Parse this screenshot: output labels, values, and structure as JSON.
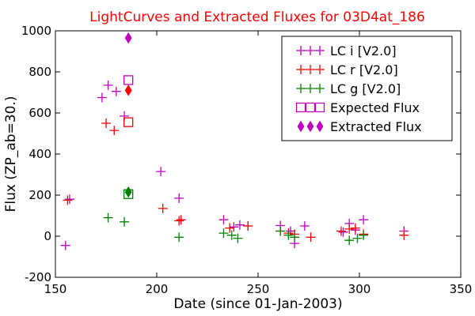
{
  "chart_data": {
    "type": "scatter",
    "title": "LightCurves and Extracted Fluxes for 03D4at_186",
    "title_color": "#ff0000",
    "xlabel": "Date (since 01-Jan-2003)",
    "ylabel": "Flux (ZP_ab=30.)",
    "xlim": [
      150,
      350
    ],
    "ylim": [
      -200,
      1000
    ],
    "xticks": [
      "150",
      "200",
      "250",
      "300",
      "350"
    ],
    "yticks": [
      "-200",
      "0",
      "200",
      "400",
      "600",
      "800",
      "1000"
    ],
    "legend_position": "top-right",
    "series": [
      {
        "name": "LC i [V2.0]",
        "marker": "plus",
        "color": "#bf00bf",
        "points": [
          [
            155,
            -45
          ],
          [
            157,
            180
          ],
          [
            173,
            675
          ],
          [
            176,
            735
          ],
          [
            180,
            705
          ],
          [
            184,
            585
          ],
          [
            202,
            315
          ],
          [
            211,
            185
          ],
          [
            233,
            80
          ],
          [
            238,
            45
          ],
          [
            241,
            55
          ],
          [
            245,
            50
          ],
          [
            261,
            52
          ],
          [
            266,
            25
          ],
          [
            268,
            -35
          ],
          [
            273,
            50
          ],
          [
            292,
            20
          ],
          [
            295,
            62
          ],
          [
            298,
            30
          ],
          [
            302,
            80
          ],
          [
            322,
            25
          ]
        ]
      },
      {
        "name": "LC r [V2.0]",
        "marker": "plus",
        "color": "#ff0000",
        "points": [
          [
            156,
            175
          ],
          [
            175,
            550
          ],
          [
            179,
            515
          ],
          [
            203,
            135
          ],
          [
            211,
            75
          ],
          [
            212,
            80
          ],
          [
            236,
            40
          ],
          [
            245,
            50
          ],
          [
            261,
            25
          ],
          [
            265,
            15
          ],
          [
            268,
            10
          ],
          [
            276,
            -5
          ],
          [
            291,
            25
          ],
          [
            295,
            35
          ],
          [
            298,
            40
          ],
          [
            302,
            10
          ],
          [
            322,
            5
          ]
        ]
      },
      {
        "name": "LC g [V2.0]",
        "marker": "plus",
        "color": "#008000",
        "points": [
          [
            176,
            90
          ],
          [
            184,
            70
          ],
          [
            211,
            -5
          ],
          [
            233,
            15
          ],
          [
            237,
            5
          ],
          [
            240,
            -10
          ],
          [
            261,
            25
          ],
          [
            265,
            5
          ],
          [
            268,
            -5
          ],
          [
            295,
            -20
          ],
          [
            299,
            -10
          ],
          [
            302,
            5
          ]
        ]
      },
      {
        "name": "Expected Flux",
        "marker": "square",
        "color": "#bf00bf",
        "points": [
          [
            186,
            760
          ]
        ]
      },
      {
        "name": "Expected Flux (r)",
        "legend": false,
        "marker": "square",
        "color": "#ff0000",
        "points": [
          [
            186,
            555
          ]
        ]
      },
      {
        "name": "Expected Flux (g)",
        "legend": false,
        "marker": "square",
        "color": "#008000",
        "points": [
          [
            186,
            205
          ]
        ]
      },
      {
        "name": "Extracted Flux",
        "marker": "diamond",
        "color": "#bf00bf",
        "points": [
          [
            186,
            965
          ]
        ]
      },
      {
        "name": "Extracted Flux (r)",
        "legend": false,
        "marker": "diamond",
        "color": "#ff0000",
        "points": [
          [
            186,
            710
          ]
        ]
      },
      {
        "name": "Extracted Flux (g)",
        "legend": false,
        "marker": "diamond",
        "color": "#008000",
        "points": [
          [
            186,
            215
          ]
        ]
      }
    ]
  }
}
